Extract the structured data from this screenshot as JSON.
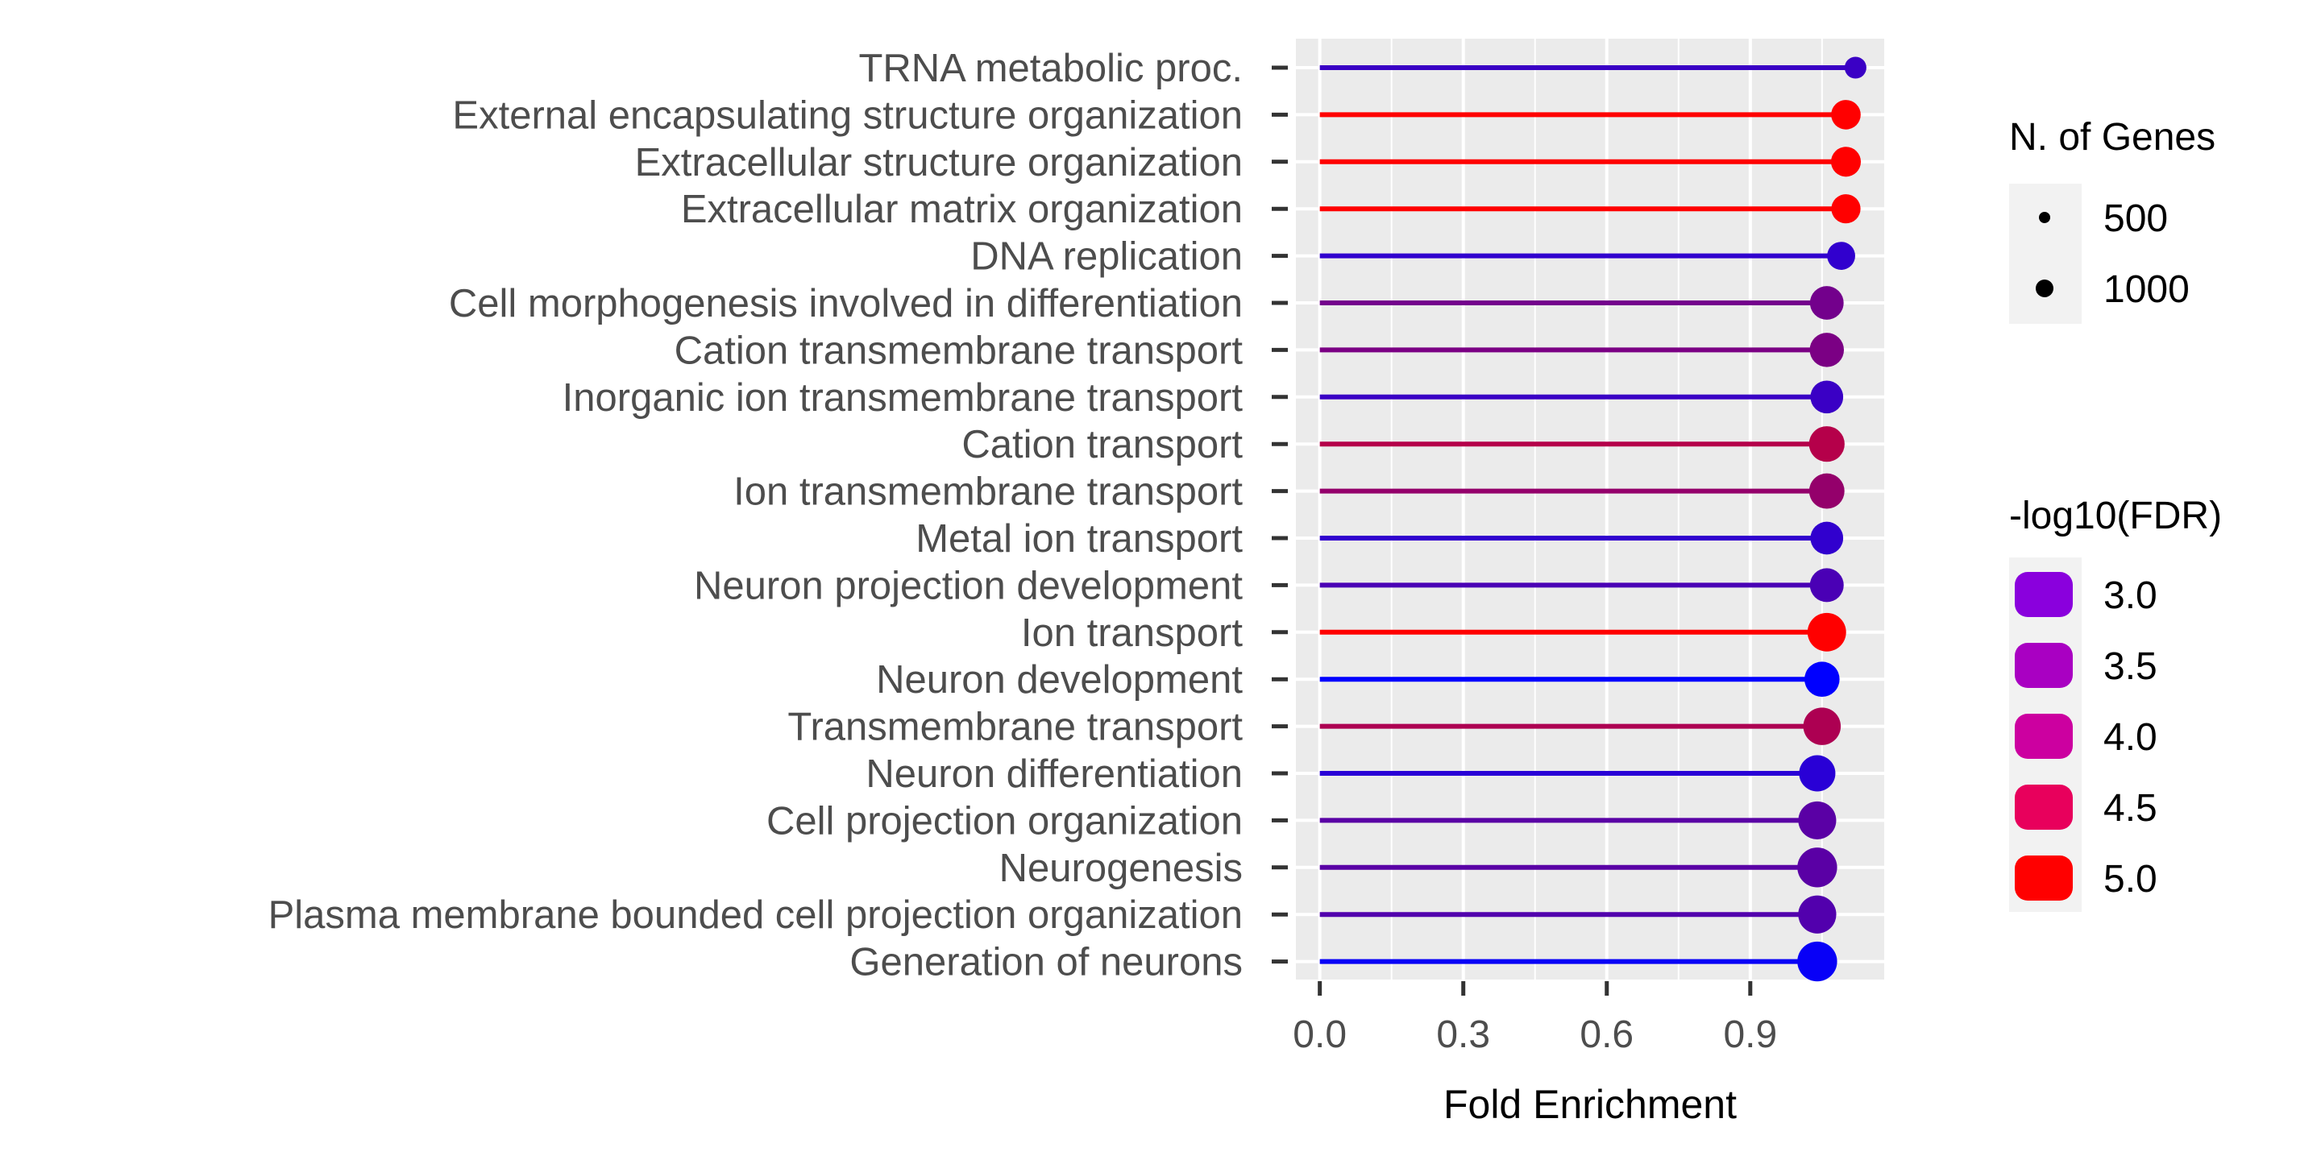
{
  "chart_data": {
    "type": "lollipop",
    "xlabel": "Fold Enrichment",
    "ylabel": "",
    "xlim": [
      -0.05,
      1.18
    ],
    "x_ticks": [
      "0.0",
      "0.3",
      "0.6",
      "0.9"
    ],
    "x_tick_values": [
      0.0,
      0.3,
      0.6,
      0.9
    ],
    "grid": true,
    "legend_placement": "right",
    "categories": [
      "TRNA metabolic proc.",
      "External encapsulating structure organization",
      "Extracellular structure organization",
      "Extracellular matrix organization",
      "DNA replication",
      "Cell morphogenesis involved in differentiation",
      "Cation transmembrane transport",
      "Inorganic ion transmembrane transport",
      "Cation transport",
      "Ion transmembrane transport",
      "Metal ion transport",
      "Neuron projection development",
      "Ion transport",
      "Neuron development",
      "Transmembrane transport",
      "Neuron differentiation",
      "Cell projection organization",
      "Neurogenesis",
      "Plasma membrane bounded cell projection organization",
      "Generation of neurons"
    ],
    "fold_enrichment": [
      1.12,
      1.1,
      1.1,
      1.1,
      1.09,
      1.06,
      1.06,
      1.06,
      1.06,
      1.06,
      1.06,
      1.06,
      1.06,
      1.05,
      1.05,
      1.04,
      1.04,
      1.04,
      1.04,
      1.04
    ],
    "n_genes": [
      210,
      560,
      580,
      540,
      480,
      820,
      860,
      760,
      960,
      940,
      760,
      830,
      1190,
      920,
      1100,
      1010,
      1140,
      1290,
      1150,
      1290
    ],
    "neg_log10_fdr": [
      2.6,
      5.0,
      5.0,
      5.0,
      2.5,
      3.3,
      3.4,
      2.6,
      4.1,
      3.7,
      2.5,
      2.8,
      5.0,
      1.9,
      4.0,
      2.4,
      3.0,
      3.0,
      2.9,
      2.0
    ],
    "legends": {
      "size": {
        "title": "N. of Genes",
        "entries": [
          "500",
          "1000"
        ],
        "values": [
          500,
          1000
        ]
      },
      "color": {
        "title": "-log10(FDR)",
        "entries": [
          "3.0",
          "3.5",
          "4.0",
          "4.5",
          "5.0"
        ],
        "values": [
          3.0,
          3.5,
          4.0,
          4.5,
          5.0
        ],
        "colors": [
          "#8a00dd",
          "#a900c2",
          "#cc00a0",
          "#e8005c",
          "#ff0000"
        ]
      }
    },
    "colors": {
      "panel_bg": "#ebebeb",
      "grid": "#ffffff",
      "scale_low": "#0000ff",
      "scale_high": "#ff0000"
    }
  }
}
